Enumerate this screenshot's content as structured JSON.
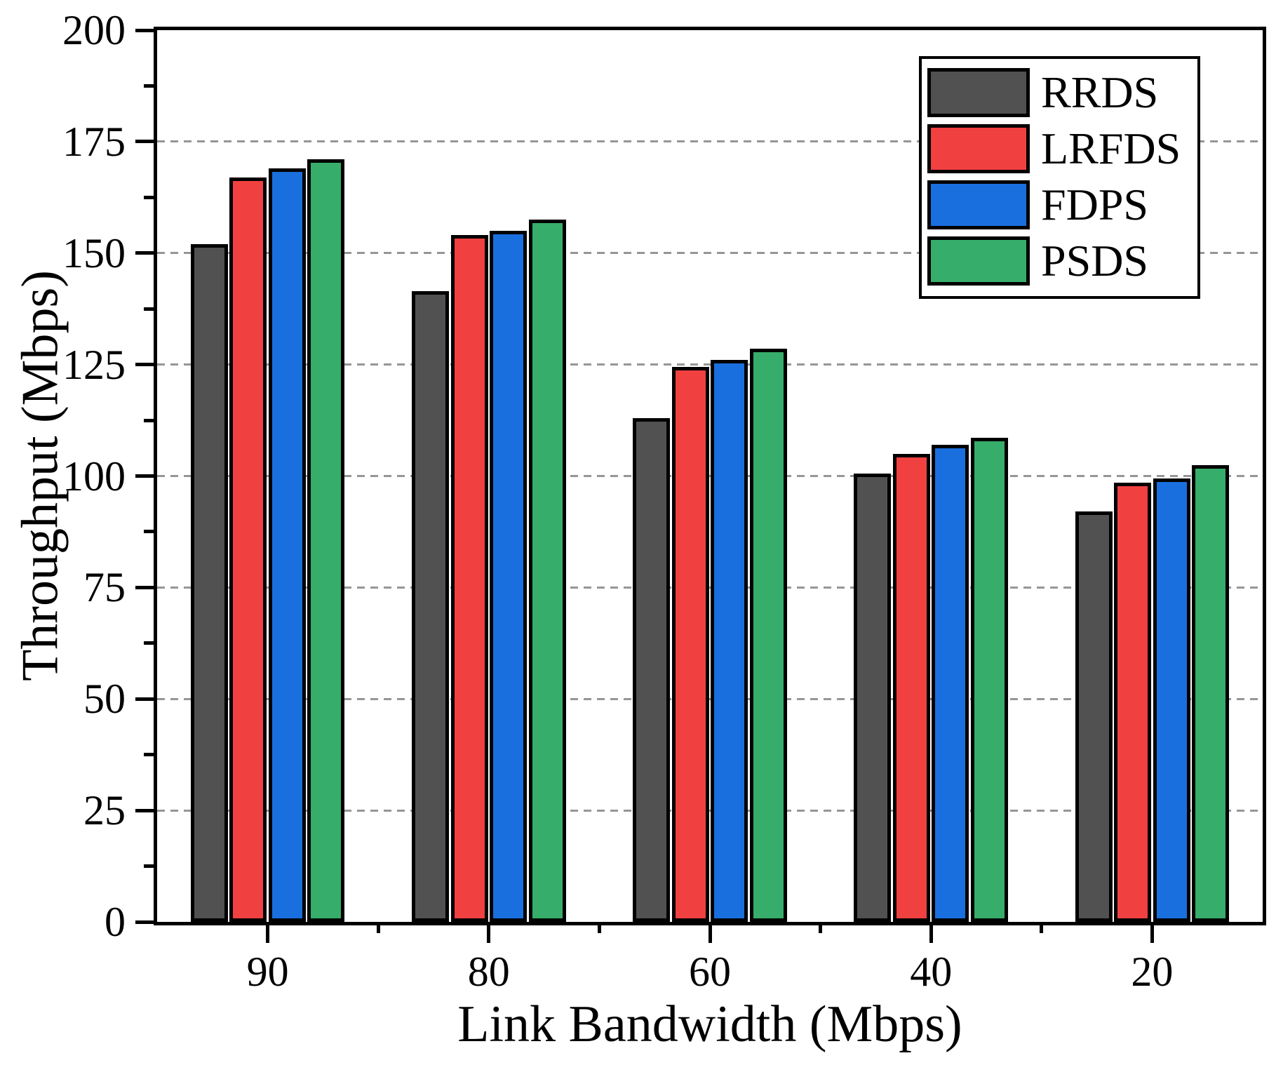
{
  "chart_data": {
    "type": "bar",
    "title": "",
    "xlabel": "Link Bandwidth (Mbps)",
    "ylabel": "Throughput (Mbps)",
    "categories": [
      "90",
      "80",
      "60",
      "40",
      "20"
    ],
    "series": [
      {
        "name": "RRDS",
        "color": "#515151",
        "values": [
          152,
          141.5,
          113,
          100.5,
          92
        ]
      },
      {
        "name": "LRFDS",
        "color": "#F14040",
        "values": [
          167,
          154,
          124.5,
          105,
          98.5
        ]
      },
      {
        "name": "FDPS",
        "color": "#1A6FDF",
        "values": [
          169,
          155,
          126,
          107,
          99.5
        ]
      },
      {
        "name": "PSDS",
        "color": "#37AD6B",
        "values": [
          171,
          157.5,
          128.5,
          108.5,
          102.5
        ]
      }
    ],
    "ylim": [
      0,
      200
    ],
    "ytick_step": 25,
    "yticks": [
      "0",
      "25",
      "50",
      "75",
      "100",
      "125",
      "150",
      "175",
      "200"
    ],
    "grid": "horizontal-dashed",
    "grid_color": "#969696",
    "axis_color": "#000000",
    "background": "#ffffff",
    "legend_position": "top-right",
    "bar_edge_color": "#000000"
  }
}
